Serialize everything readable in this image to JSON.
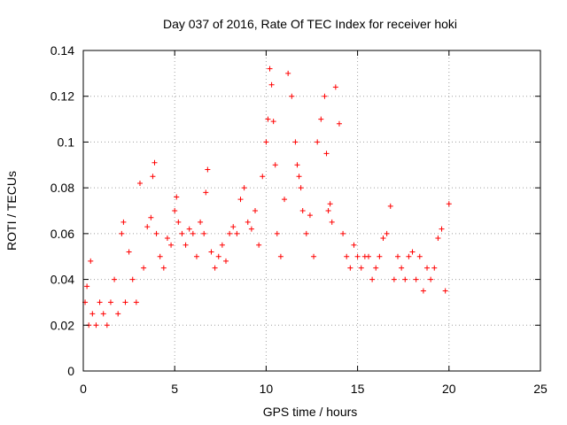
{
  "chart_data": {
    "type": "scatter",
    "title": "Day 037 of 2016, Rate Of TEC Index for receiver hoki",
    "xlabel": "GPS time / hours",
    "ylabel": "ROTI / TECUs",
    "xlim": [
      0,
      25
    ],
    "ylim": [
      0,
      0.14
    ],
    "x_ticks": [
      0,
      5,
      10,
      15,
      20,
      25
    ],
    "y_ticks": [
      0,
      0.02,
      0.04,
      0.06,
      0.08,
      0.1,
      0.12,
      0.14
    ],
    "x_tick_labels": [
      "0",
      "5",
      "10",
      "15",
      "20",
      "25"
    ],
    "y_tick_labels": [
      "0",
      "0.02",
      "0.04",
      "0.06",
      "0.08",
      "0.1",
      "0.12",
      "0.14"
    ],
    "grid": true,
    "marker": "plus",
    "color": "#ff0000",
    "series": [
      {
        "x": [
          0.1,
          0.2,
          0.3,
          0.4,
          0.5,
          0.7,
          0.9,
          1.1,
          1.3,
          1.5,
          1.7,
          1.9,
          2.1,
          2.2,
          2.3,
          2.5,
          2.7,
          2.9,
          3.1,
          3.3,
          3.5,
          3.7,
          3.8,
          3.9,
          4.0,
          4.2,
          4.4,
          4.6,
          4.8,
          5.0,
          5.1,
          5.2,
          5.4,
          5.6,
          5.8,
          6.0,
          6.2,
          6.4,
          6.6,
          6.7,
          6.8,
          7.0,
          7.2,
          7.4,
          7.6,
          7.8,
          8.0,
          8.2,
          8.4,
          8.6,
          8.8,
          9.0,
          9.2,
          9.4,
          9.6,
          9.8,
          10.0,
          10.1,
          10.2,
          10.3,
          10.4,
          10.5,
          10.6,
          10.8,
          11.0,
          11.2,
          11.4,
          11.6,
          11.7,
          11.8,
          11.9,
          12.0,
          12.2,
          12.4,
          12.6,
          12.8,
          13.0,
          13.2,
          13.3,
          13.4,
          13.5,
          13.6,
          13.8,
          14.0,
          14.2,
          14.4,
          14.6,
          14.8,
          15.0,
          15.2,
          15.4,
          15.6,
          15.8,
          16.0,
          16.2,
          16.4,
          16.6,
          16.8,
          17.0,
          17.2,
          17.4,
          17.6,
          17.8,
          18.0,
          18.2,
          18.4,
          18.6,
          18.8,
          19.0,
          19.2,
          19.4,
          19.6,
          19.8,
          20.0
        ],
        "y": [
          0.03,
          0.037,
          0.02,
          0.048,
          0.025,
          0.02,
          0.03,
          0.025,
          0.02,
          0.03,
          0.04,
          0.025,
          0.06,
          0.065,
          0.03,
          0.052,
          0.04,
          0.03,
          0.082,
          0.045,
          0.063,
          0.067,
          0.085,
          0.091,
          0.06,
          0.05,
          0.045,
          0.058,
          0.055,
          0.07,
          0.076,
          0.065,
          0.06,
          0.055,
          0.062,
          0.06,
          0.05,
          0.065,
          0.06,
          0.078,
          0.088,
          0.052,
          0.045,
          0.05,
          0.055,
          0.048,
          0.06,
          0.063,
          0.06,
          0.075,
          0.08,
          0.065,
          0.062,
          0.07,
          0.055,
          0.085,
          0.1,
          0.11,
          0.132,
          0.125,
          0.109,
          0.09,
          0.06,
          0.05,
          0.075,
          0.13,
          0.12,
          0.1,
          0.09,
          0.085,
          0.08,
          0.07,
          0.06,
          0.068,
          0.05,
          0.1,
          0.11,
          0.12,
          0.095,
          0.07,
          0.073,
          0.065,
          0.124,
          0.108,
          0.06,
          0.05,
          0.045,
          0.055,
          0.05,
          0.045,
          0.05,
          0.05,
          0.04,
          0.045,
          0.05,
          0.058,
          0.06,
          0.072,
          0.04,
          0.05,
          0.045,
          0.04,
          0.05,
          0.052,
          0.04,
          0.05,
          0.035,
          0.045,
          0.04,
          0.045,
          0.058,
          0.062,
          0.035,
          0.073
        ]
      }
    ]
  }
}
